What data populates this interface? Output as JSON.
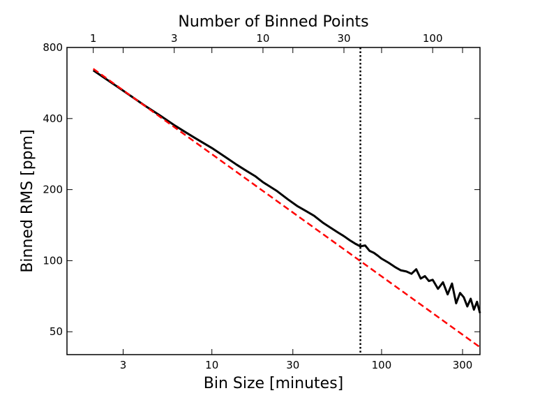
{
  "chart_data": {
    "type": "line",
    "xlabel": "Bin Size [minutes]",
    "ylabel": "Binned RMS [ppm]",
    "x2label": "Number of Binned Points",
    "xscale": "log",
    "yscale": "log",
    "xlim": [
      1.4,
      380
    ],
    "ylim": [
      40,
      800
    ],
    "x2lim": [
      0.7,
      190
    ],
    "xticks": [
      3,
      10,
      30,
      100,
      300
    ],
    "yticks": [
      50,
      100,
      200,
      400,
      800
    ],
    "x2ticks": [
      1,
      3,
      10,
      30,
      100
    ],
    "xtick_labels": [
      "3",
      "10",
      "30",
      "100",
      "300"
    ],
    "ytick_labels": [
      "50",
      "100",
      "200",
      "400",
      "800"
    ],
    "x2tick_labels": [
      "1",
      "3",
      "10",
      "30",
      "100"
    ],
    "grid": false,
    "legend": "none",
    "series": [
      {
        "style": "solid",
        "color": "#000000",
        "x": [
          2,
          3,
          4,
          5,
          6,
          7,
          8,
          10,
          12,
          14,
          16,
          18,
          20,
          24,
          28,
          32,
          36,
          40,
          45,
          50,
          55,
          60,
          65,
          70,
          75,
          80,
          85,
          90,
          95,
          100,
          110,
          120,
          130,
          140,
          150,
          160,
          170,
          180,
          190,
          200,
          215,
          230,
          245,
          260,
          275,
          290,
          305,
          320,
          335,
          350,
          365,
          380
        ],
        "y": [
          640,
          525,
          455,
          410,
          375,
          350,
          330,
          300,
          275,
          255,
          240,
          228,
          215,
          198,
          182,
          170,
          162,
          155,
          145,
          138,
          132,
          127,
          122,
          118,
          115,
          116,
          110,
          108,
          105,
          102,
          98,
          94,
          91,
          90,
          88,
          92,
          84,
          86,
          82,
          83,
          76,
          81,
          72,
          80,
          66,
          73,
          70,
          64,
          69,
          62,
          67,
          60
        ]
      },
      {
        "style": "dashed",
        "color": "#ff0000",
        "x": [
          2,
          380
        ],
        "y": [
          650,
          43
        ]
      }
    ],
    "vline": {
      "x": 75,
      "style": "dotted",
      "color": "#000000"
    }
  }
}
